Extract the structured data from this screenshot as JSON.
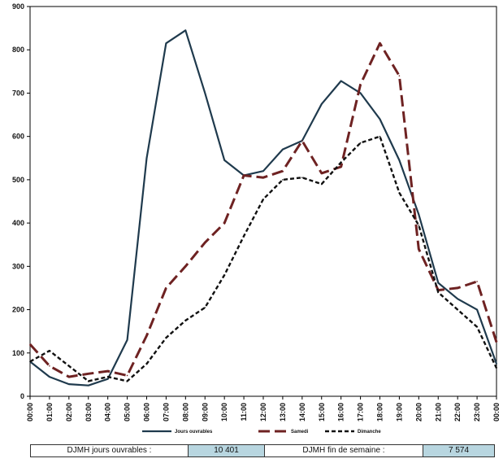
{
  "chart_data": {
    "type": "line",
    "title": "",
    "xlabel": "",
    "ylabel": "",
    "ylim": [
      0,
      900
    ],
    "yticks": [
      0,
      100,
      200,
      300,
      400,
      500,
      600,
      700,
      800,
      900
    ],
    "categories": [
      "00:00",
      "01:00",
      "02:00",
      "03:00",
      "04:00",
      "05:00",
      "06:00",
      "07:00",
      "08:00",
      "09:00",
      "10:00",
      "11:00",
      "12:00",
      "13:00",
      "14:00",
      "15:00",
      "16:00",
      "17:00",
      "18:00",
      "19:00",
      "20:00",
      "21:00",
      "22:00",
      "23:00",
      "00:00"
    ],
    "grid": false,
    "legend_position": "bottom",
    "series": [
      {
        "name": "Jours ouvrables",
        "color": "#1f3a4d",
        "style": "solid",
        "values": [
          80,
          45,
          28,
          25,
          40,
          130,
          550,
          815,
          845,
          700,
          545,
          510,
          520,
          570,
          590,
          675,
          728,
          700,
          640,
          545,
          420,
          262,
          225,
          200,
          75
        ]
      },
      {
        "name": "Samedi",
        "color": "#6e2222",
        "style": "long-dash",
        "values": [
          120,
          70,
          45,
          52,
          58,
          48,
          140,
          250,
          300,
          355,
          400,
          510,
          505,
          520,
          590,
          515,
          530,
          720,
          815,
          740,
          340,
          245,
          250,
          265,
          125
        ]
      },
      {
        "name": "Dimanche",
        "color": "#111111",
        "style": "short-dash",
        "values": [
          80,
          105,
          70,
          35,
          45,
          35,
          75,
          135,
          175,
          205,
          280,
          370,
          455,
          500,
          505,
          490,
          540,
          585,
          600,
          470,
          395,
          240,
          200,
          160,
          65
        ]
      }
    ]
  },
  "summary": {
    "label_weekday": "DJMH jours ouvrables :",
    "value_weekday": "10 401",
    "label_weekend": "DJMH fin de semaine :",
    "value_weekend": "7 574"
  },
  "colors": {
    "summary_value_bg": "#b8d6e0",
    "plot_border": "#000000"
  }
}
